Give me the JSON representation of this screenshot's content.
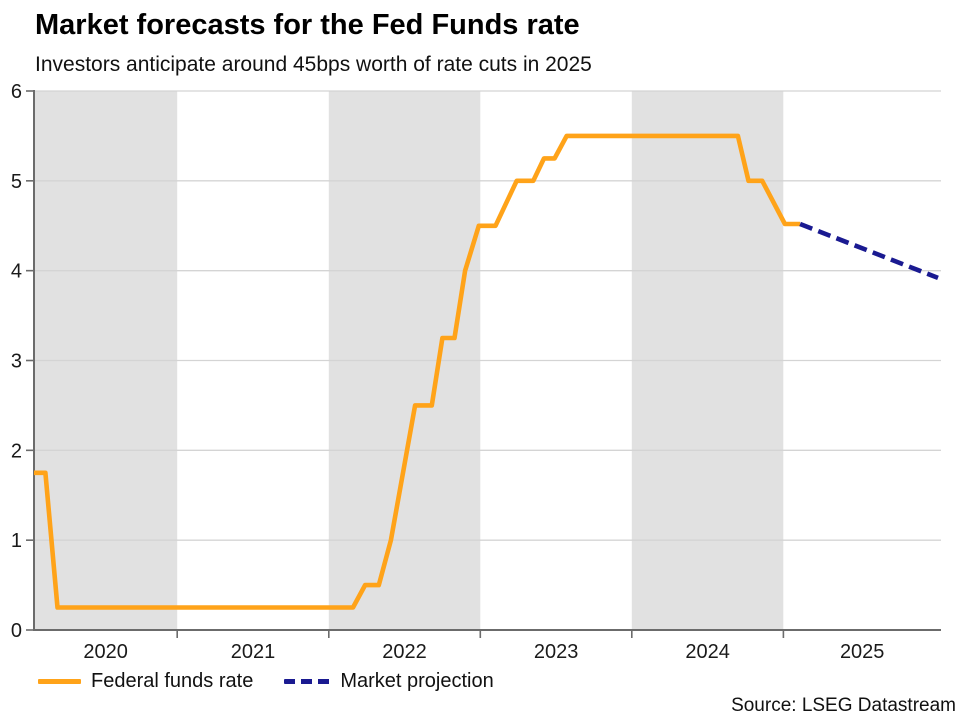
{
  "header": {
    "title": "Market forecasts for the Fed Funds rate",
    "subtitle": "Investors anticipate around 45bps worth of rate cuts in 2025"
  },
  "source": "Source: LSEG Datastream",
  "legend": [
    {
      "label": "Federal funds rate",
      "style": "solid",
      "color": "#FFA319"
    },
    {
      "label": "Market projection",
      "style": "dashed",
      "color": "#1A1A91"
    }
  ],
  "chart_data": {
    "type": "line",
    "title": "Market forecasts for the Fed Funds rate",
    "subtitle": "Investors anticipate around 45bps worth of rate cuts in 2025",
    "xlabel": "",
    "ylabel": "",
    "x_range": [
      2020.055,
      2026.04
    ],
    "y_range": [
      0,
      6
    ],
    "y_ticks": [
      0,
      1,
      2,
      3,
      4,
      5,
      6
    ],
    "x_tick_boundaries": [
      2021,
      2022,
      2023,
      2024,
      2025
    ],
    "x_labels": [
      {
        "label": "2020",
        "span": [
          2020.055,
          2021
        ]
      },
      {
        "label": "2021",
        "span": [
          2021,
          2022
        ]
      },
      {
        "label": "2022",
        "span": [
          2022,
          2023
        ]
      },
      {
        "label": "2023",
        "span": [
          2023,
          2024
        ]
      },
      {
        "label": "2024",
        "span": [
          2024,
          2025
        ]
      },
      {
        "label": "2025",
        "span": [
          2025,
          2026.04
        ]
      }
    ],
    "shaded_year_bands": [
      [
        2020.055,
        2021
      ],
      [
        2022,
        2023
      ],
      [
        2024,
        2025
      ]
    ],
    "grid": true,
    "legend_position": "bottom-left",
    "band_color": "#E1E1E1",
    "grid_color": "#D4D4D4",
    "axis_color": "#6B6B6B",
    "series": [
      {
        "name": "Federal funds rate",
        "color": "#FFA319",
        "dash": null,
        "points": [
          [
            2020.055,
            1.75
          ],
          [
            2020.13,
            1.75
          ],
          [
            2020.21,
            0.25
          ],
          [
            2022.16,
            0.25
          ],
          [
            2022.24,
            0.5
          ],
          [
            2022.33,
            0.5
          ],
          [
            2022.41,
            1.0
          ],
          [
            2022.57,
            2.5
          ],
          [
            2022.68,
            2.5
          ],
          [
            2022.75,
            3.25
          ],
          [
            2022.83,
            3.25
          ],
          [
            2022.9,
            4.0
          ],
          [
            2022.99,
            4.5
          ],
          [
            2023.1,
            4.5
          ],
          [
            2023.24,
            5.0
          ],
          [
            2023.35,
            5.0
          ],
          [
            2023.42,
            5.25
          ],
          [
            2023.49,
            5.25
          ],
          [
            2023.57,
            5.5
          ],
          [
            2024.7,
            5.5
          ],
          [
            2024.77,
            5.0
          ],
          [
            2024.86,
            5.0
          ],
          [
            2025.01,
            4.52
          ],
          [
            2025.11,
            4.52
          ]
        ]
      },
      {
        "name": "Market projection",
        "color": "#1A1A91",
        "dash": [
          13,
          6.5
        ],
        "points": [
          [
            2025.11,
            4.52
          ],
          [
            2026.02,
            3.92
          ]
        ]
      }
    ]
  }
}
